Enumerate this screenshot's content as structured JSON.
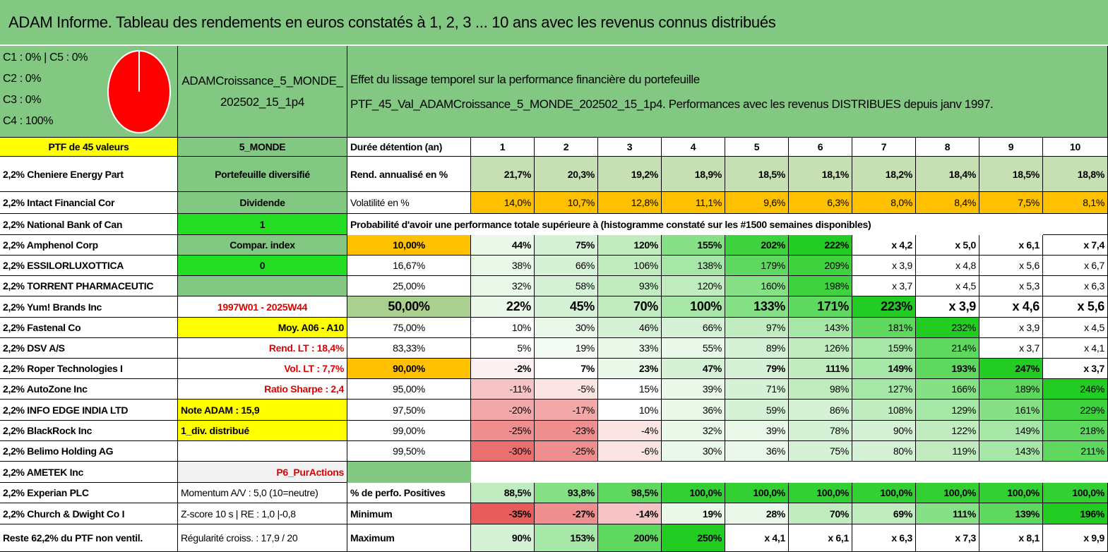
{
  "header": {
    "title": "ADAM Informe. Tableau des rendements en euros constatés à 1, 2, 3 ... 10 ans avec les revenus connus distribués"
  },
  "allocation": {
    "lines": [
      "C1 : 0% | C5 : 0%",
      "C2 : 0%",
      "C3 : 0%",
      "C4 : 100%"
    ]
  },
  "portfolio": {
    "name": "ADAMCroissance_5_MONDE_202502_15_1p4"
  },
  "description": {
    "lines": [
      "Effet du lissage temporel sur la performance financière du portefeuille",
      "PTF_45_Val_ADAMCroissance_5_MONDE_202502_15_1p4. Performances avec les revenus DISTRIBUES depuis janv 1997."
    ]
  },
  "table": {
    "rows": [
      {
        "a": "PTF de 45 valeurs",
        "a_bg": "#ffff00",
        "b": "5_MONDE",
        "b_bg": "#82c882",
        "c": "Durée détention (an)",
        "cells": [
          "1",
          "2",
          "3",
          "4",
          "5",
          "6",
          "7",
          "8",
          "9",
          "10"
        ]
      },
      {
        "a": "2,2% Cheniere Energy Part",
        "b": "Portefeuille diversifié",
        "b_bg": "#82c882",
        "c": "Rend. annualisé en %",
        "cells": [
          "21,7%",
          "20,3%",
          "19,2%",
          "18,9%",
          "18,5%",
          "18,1%",
          "18,2%",
          "18,4%",
          "18,5%",
          "18,8%"
        ],
        "fills": [
          "#c6e0b4",
          "#c6e0b4",
          "#c6e0b4",
          "#c6e0b4",
          "#c6e0b4",
          "#c6e0b4",
          "#c6e0b4",
          "#c6e0b4",
          "#c6e0b4",
          "#c6e0b4"
        ]
      },
      {
        "a": "2,2% Intact Financial Cor",
        "b": "Dividende",
        "b_bg": "#82c882",
        "c": "Volatilité en %",
        "cells": [
          "14,0%",
          "10,7%",
          "12,8%",
          "11,1%",
          "9,6%",
          "6,3%",
          "8,0%",
          "8,4%",
          "7,5%",
          "8,1%"
        ],
        "fills": [
          "#ffc000",
          "#ffc000",
          "#ffc000",
          "#ffc000",
          "#ffc000",
          "#ffc000",
          "#ffc000",
          "#ffc000",
          "#ffc000",
          "#ffc000"
        ]
      },
      {
        "a": "2,2% National Bank of Can",
        "b": "1",
        "b_bg": "#22dd22",
        "note": "Probabilité d'avoir une performance totale supérieure à (histogramme constaté sur les #1500 semaines disponibles)"
      },
      {
        "a": "2,2% Amphenol Corp",
        "b": "Compar. index",
        "b_bg": "#82c882",
        "c": "10,00%",
        "c_bg": "#ffc000",
        "cells": [
          "44%",
          "75%",
          "120%",
          "155%",
          "202%",
          "222%",
          "x 4,2",
          "x 5,0",
          "x 6,1",
          "x 7,4"
        ],
        "fills": [
          "#eaf8ea",
          "#d6f2d6",
          "#c0ecc0",
          "#86e086",
          "#3fd23f",
          "#22cc22",
          "#ffffff",
          "#ffffff",
          "#ffffff",
          "#ffffff"
        ]
      },
      {
        "a": "2,2% ESSILORLUXOTTICA",
        "b": "0",
        "b_bg": "#22dd22",
        "c": "16,67%",
        "cells": [
          "38%",
          "66%",
          "106%",
          "138%",
          "179%",
          "209%",
          "x 3,9",
          "x 4,8",
          "x 5,6",
          "x 6,7"
        ],
        "fills": [
          "#eaf8ea",
          "#d6f2d6",
          "#c0ecc0",
          "#a6e6a6",
          "#5fd85f",
          "#3fd23f",
          "#ffffff",
          "#ffffff",
          "#ffffff",
          "#ffffff"
        ]
      },
      {
        "a": "2,2% TORRENT PHARMACEUTIC",
        "b_bg": "#82c882",
        "c": "25,00%",
        "cells": [
          "32%",
          "58%",
          "93%",
          "120%",
          "160%",
          "198%",
          "x 3,7",
          "x 4,5",
          "x 5,3",
          "x 6,3"
        ],
        "fills": [
          "#eaf8ea",
          "#d6f2d6",
          "#c0ecc0",
          "#c0ecc0",
          "#86e086",
          "#3fd23f",
          "#ffffff",
          "#ffffff",
          "#ffffff",
          "#ffffff"
        ]
      },
      {
        "a": "2,2% Yum! Brands Inc",
        "b": "1997W01 - 2025W44",
        "b_fg": "#e00000",
        "c": "50,00%",
        "c_bg": "#a9d08e",
        "cells": [
          "22%",
          "45%",
          "70%",
          "100%",
          "133%",
          "171%",
          "223%",
          "x 3,9",
          "x 4,6",
          "x 5,6"
        ],
        "fills": [
          "#eaf8ea",
          "#d6f2d6",
          "#c0ecc0",
          "#a6e6a6",
          "#86e086",
          "#5fd85f",
          "#22cc22",
          "#ffffff",
          "#ffffff",
          "#ffffff"
        ]
      },
      {
        "a": "2,2% Fastenal Co",
        "b": "Moy. A06 - A10",
        "b_bg": "#ffff00",
        "c": "75,00%",
        "cells": [
          "10%",
          "30%",
          "46%",
          "66%",
          "97%",
          "143%",
          "181%",
          "232%",
          "x 3,9",
          "x 4,5"
        ],
        "fills": [
          "#ffffff",
          "#eaf8ea",
          "#d6f2d6",
          "#d6f2d6",
          "#c0ecc0",
          "#a6e6a6",
          "#5fd85f",
          "#22cc22",
          "#ffffff",
          "#ffffff"
        ]
      },
      {
        "a": "2,2% DSV A/S",
        "b": "Rend. LT : 18,4%",
        "b_fg": "#e00000",
        "c": "83,33%",
        "cells": [
          "5%",
          "19%",
          "33%",
          "55%",
          "89%",
          "126%",
          "159%",
          "214%",
          "x 3,7",
          "x 4,1"
        ],
        "fills": [
          "#ffffff",
          "#f4fbf4",
          "#eaf8ea",
          "#eaf8ea",
          "#d6f2d6",
          "#c0ecc0",
          "#a6e6a6",
          "#5fd85f",
          "#ffffff",
          "#ffffff"
        ]
      },
      {
        "a": "2,2% Roper Technologies I",
        "b": "Vol. LT : 7,7%",
        "b_fg": "#e00000",
        "c": "90,00%",
        "c_bg": "#ffc000",
        "cells": [
          "-2%",
          "7%",
          "23%",
          "47%",
          "79%",
          "111%",
          "149%",
          "193%",
          "247%",
          "x 3,7"
        ],
        "fills": [
          "#fdf0f0",
          "#ffffff",
          "#eaf8ea",
          "#d6f2d6",
          "#d6f2d6",
          "#c0ecc0",
          "#a6e6a6",
          "#5fd85f",
          "#22cc22",
          "#ffffff"
        ]
      },
      {
        "a": "2,2% AutoZone Inc",
        "b": "Ratio Sharpe : 2,4",
        "b_fg": "#e00000",
        "c": "95,00%",
        "cells": [
          "-11%",
          "-5%",
          "15%",
          "39%",
          "71%",
          "98%",
          "127%",
          "166%",
          "189%",
          "246%"
        ],
        "fills": [
          "#f6c4c4",
          "#fbe4e4",
          "#ffffff",
          "#eaf8ea",
          "#d6f2d6",
          "#c0ecc0",
          "#a6e6a6",
          "#86e086",
          "#5fd85f",
          "#22cc22"
        ]
      },
      {
        "a": "2,2% INFO EDGE INDIA LTD",
        "b": "Note ADAM : 15,9",
        "b_bg": "#ffff00",
        "c": "97,50%",
        "cells": [
          "-20%",
          "-17%",
          "10%",
          "36%",
          "59%",
          "86%",
          "108%",
          "129%",
          "161%",
          "229%"
        ],
        "fills": [
          "#f2a8a8",
          "#f2a8a8",
          "#ffffff",
          "#eaf8ea",
          "#d6f2d6",
          "#d6f2d6",
          "#c0ecc0",
          "#a6e6a6",
          "#86e086",
          "#3fd23f"
        ]
      },
      {
        "a": "2,2% BlackRock Inc",
        "b": "1_div. distribué",
        "b_bg": "#ffff00",
        "c": "99,00%",
        "cells": [
          "-25%",
          "-23%",
          "-4%",
          "32%",
          "39%",
          "78%",
          "90%",
          "122%",
          "149%",
          "218%"
        ],
        "fills": [
          "#ee8e8e",
          "#ee8e8e",
          "#fbe4e4",
          "#eaf8ea",
          "#eaf8ea",
          "#d6f2d6",
          "#d6f2d6",
          "#c0ecc0",
          "#a6e6a6",
          "#5fd85f"
        ]
      },
      {
        "a": "2,2% Belimo Holding AG",
        "c": "99,50%",
        "cells": [
          "-30%",
          "-25%",
          "-6%",
          "30%",
          "36%",
          "75%",
          "80%",
          "119%",
          "143%",
          "211%"
        ],
        "fills": [
          "#ea7070",
          "#ee8e8e",
          "#fbe4e4",
          "#eaf8ea",
          "#eaf8ea",
          "#d6f2d6",
          "#d6f2d6",
          "#c0ecc0",
          "#a6e6a6",
          "#5fd85f"
        ]
      },
      {
        "a": "2,2% AMETEK Inc",
        "b": "P6_PurActions",
        "b_bg": "#f2f2f2",
        "b_fg": "#e00000",
        "c_bg": "#82c882"
      },
      {
        "a": "2,2% Experian PLC",
        "b": "Momentum A/V : 5,0 (10=neutre)",
        "c": "% de perfo. Positives",
        "cells": [
          "88,5%",
          "93,8%",
          "98,5%",
          "100,0%",
          "100,0%",
          "100,0%",
          "100,0%",
          "100,0%",
          "100,0%",
          "100,0%"
        ],
        "fills": [
          "#c0ecc0",
          "#86e086",
          "#5fd85f",
          "#33d033",
          "#33d033",
          "#33d033",
          "#33d033",
          "#33d033",
          "#33d033",
          "#33d033"
        ]
      },
      {
        "a": "2,2% Church & Dwight Co I",
        "b": "Z-score 10 s | RE : 1,0 |-0,8",
        "c": "Minimum",
        "cells": [
          "-35%",
          "-27%",
          "-14%",
          "19%",
          "28%",
          "70%",
          "69%",
          "111%",
          "139%",
          "196%"
        ],
        "fills": [
          "#e85c5c",
          "#ee8e8e",
          "#f6c4c4",
          "#eaf8ea",
          "#eaf8ea",
          "#c0ecc0",
          "#c0ecc0",
          "#86e086",
          "#5fd85f",
          "#22cc22"
        ]
      },
      {
        "a": "Reste 62,2% du PTF non ventil.",
        "b": "Régularité croiss. : 17,9 / 20",
        "c": "Maximum",
        "cells": [
          "90%",
          "153%",
          "200%",
          "250%",
          "x 4,1",
          "x 6,1",
          "x 6,3",
          "x 7,3",
          "x 8,1",
          "x 9,9"
        ],
        "fills": [
          "#d6f2d6",
          "#a6e6a6",
          "#5fd85f",
          "#22cc22",
          "#ffffff",
          "#ffffff",
          "#ffffff",
          "#ffffff",
          "#ffffff",
          "#ffffff"
        ]
      }
    ]
  }
}
